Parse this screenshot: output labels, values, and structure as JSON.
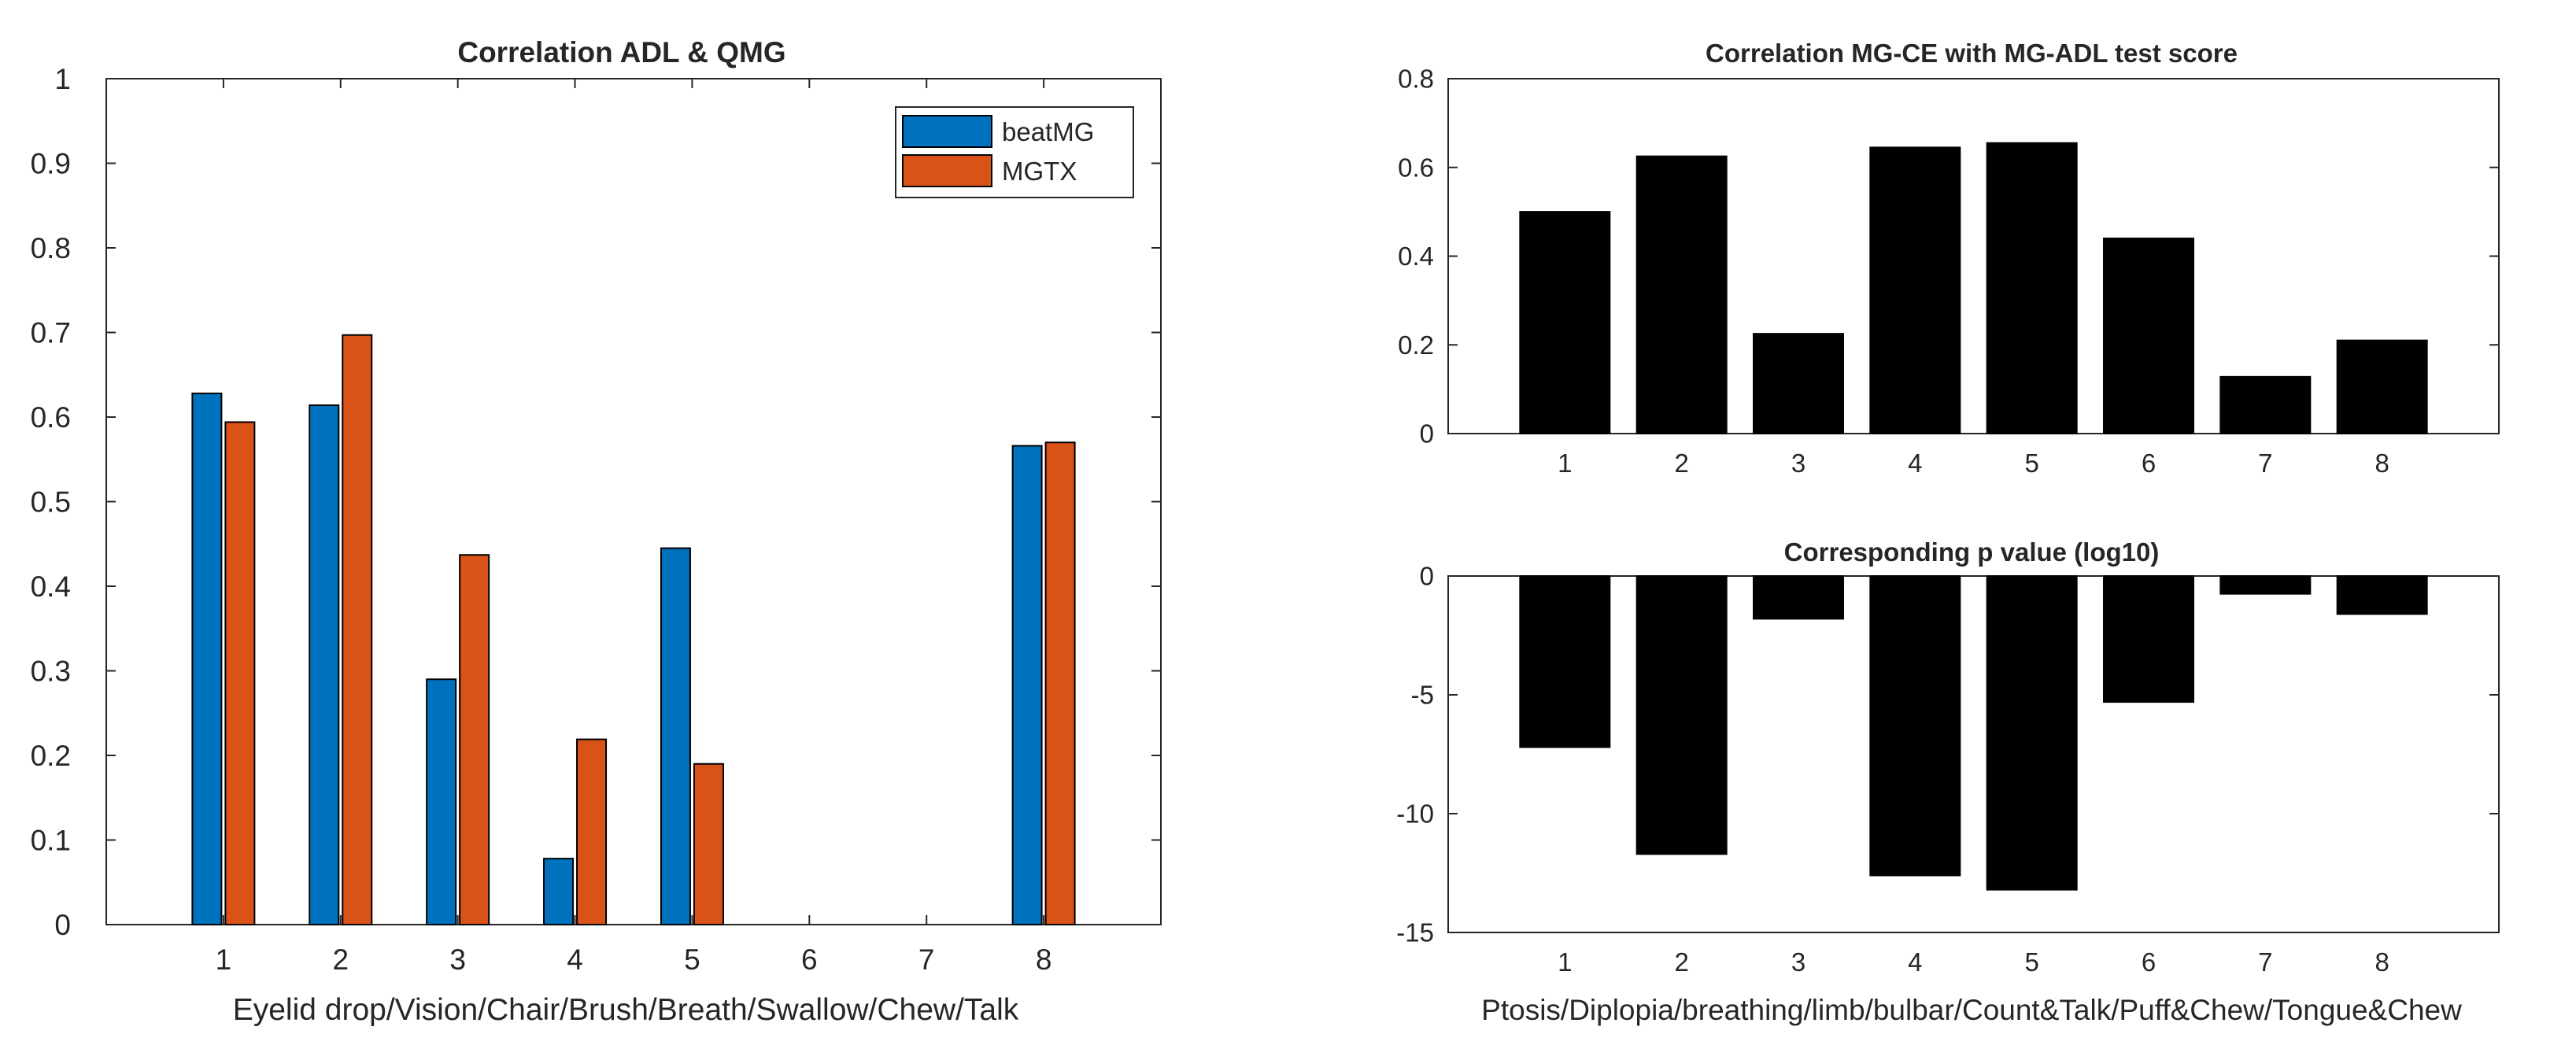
{
  "chart_data": [
    {
      "type": "bar",
      "title": "Correlation ADL & QMG",
      "xlabel": "Eyelid drop/Vision/Chair/Brush/Breath/Swallow/Chew/Talk",
      "ylabel": "",
      "categories": [
        "1",
        "2",
        "3",
        "4",
        "5",
        "6",
        "7",
        "8"
      ],
      "series": [
        {
          "name": "beatMG",
          "color": "#0072BD",
          "values": [
            0.628,
            0.614,
            0.29,
            0.078,
            0.445,
            0,
            0,
            0.566
          ]
        },
        {
          "name": "MGTX",
          "color": "#D95319",
          "values": [
            0.594,
            0.697,
            0.437,
            0.219,
            0.19,
            0,
            0,
            0.57
          ]
        }
      ],
      "ylim": [
        0,
        1
      ],
      "xlim": [
        0,
        9
      ],
      "yticks": [
        0,
        0.1,
        0.2,
        0.3,
        0.4,
        0.5,
        0.6,
        0.7,
        0.8,
        0.9,
        1
      ],
      "ytick_labels": [
        "0",
        "0.1",
        "0.2",
        "0.3",
        "0.4",
        "0.5",
        "0.6",
        "0.7",
        "0.8",
        "0.9",
        "1"
      ],
      "legend_position": "top-right",
      "grid": false
    },
    {
      "type": "bar",
      "title": "Correlation MG-CE with MG-ADL test score",
      "xlabel": "",
      "ylabel": "",
      "categories": [
        "1",
        "2",
        "3",
        "4",
        "5",
        "6",
        "7",
        "8"
      ],
      "series": [
        {
          "name": "correlation",
          "color": "#000000",
          "values": [
            0.5,
            0.625,
            0.225,
            0.645,
            0.655,
            0.44,
            0.128,
            0.21
          ]
        }
      ],
      "ylim": [
        0,
        0.8
      ],
      "xlim": [
        0,
        9
      ],
      "yticks": [
        0,
        0.2,
        0.4,
        0.6,
        0.8
      ],
      "ytick_labels": [
        "0",
        "0.2",
        "0.4",
        "0.6",
        "0.8"
      ],
      "grid": false
    },
    {
      "type": "bar",
      "title": "Corresponding p value (log10)",
      "xlabel": "Ptosis/Diplopia/breathing/limb/bulbar/Count&Talk/Puff&Chew/Tongue&Chew",
      "ylabel": "",
      "categories": [
        "1",
        "2",
        "3",
        "4",
        "5",
        "6",
        "7",
        "8"
      ],
      "series": [
        {
          "name": "log10 p",
          "color": "#000000",
          "values": [
            -7.2,
            -11.7,
            -1.8,
            -12.6,
            -13.2,
            -5.3,
            -0.75,
            -1.6
          ]
        }
      ],
      "ylim": [
        -15,
        0
      ],
      "xlim": [
        0,
        9
      ],
      "yticks": [
        -15,
        -10,
        -5,
        0
      ],
      "ytick_labels": [
        "-15",
        "-10",
        "-5",
        "0"
      ],
      "grid": false
    }
  ]
}
